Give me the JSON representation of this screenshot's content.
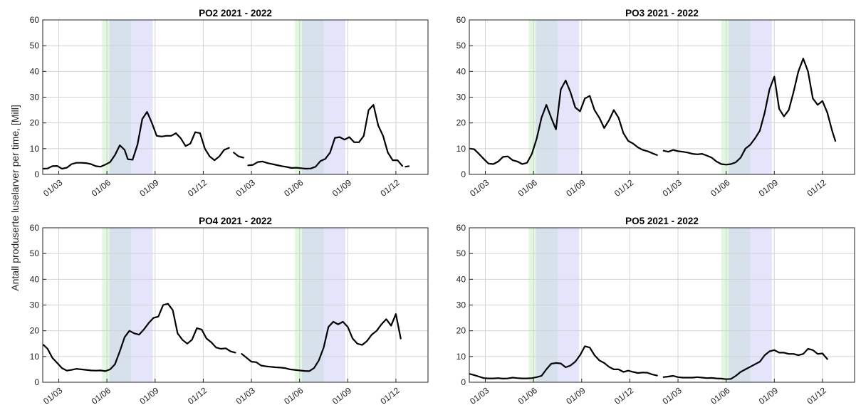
{
  "ylabel": "Antall produserte luselarver per time, [Mill]",
  "colors": {
    "green_band": "#e8f8e6",
    "overlap_band": "#cfe6e6",
    "blue_band": "#e4e4fb",
    "line": "#000000",
    "grid": "#d2d2d2"
  },
  "chart_data": [
    {
      "type": "line",
      "title": "PO2 2021 - 2022",
      "xticks": [
        "01/03",
        "01/06",
        "01/09",
        "01/12",
        "01/03",
        "01/06",
        "01/09",
        "01/12"
      ],
      "yticks": [
        "0",
        "10",
        "20",
        "30",
        "40",
        "50",
        "60"
      ],
      "ylim": [
        0,
        60
      ],
      "xlim": [
        0,
        24
      ],
      "grid": true,
      "shaded_periods": [
        {
          "kind": "green",
          "range": [
            3.7,
            5.5
          ]
        },
        {
          "kind": "blue",
          "range": [
            4.15,
            6.85
          ]
        },
        {
          "kind": "green",
          "range": [
            15.7,
            17.5
          ]
        },
        {
          "kind": "blue",
          "range": [
            16.15,
            18.85
          ]
        }
      ],
      "segments": [
        {
          "x": [
            0.05,
            0.3,
            0.6,
            0.9,
            1.2,
            1.5,
            1.8,
            2.1,
            2.4,
            2.7,
            3.0,
            3.3,
            3.6,
            3.9,
            4.2,
            4.5,
            4.8,
            5.1,
            5.3,
            5.6,
            5.9,
            6.2,
            6.5,
            6.8,
            7.1,
            7.4,
            7.7,
            8.0,
            8.3,
            8.6,
            8.9,
            9.2,
            9.5,
            9.8,
            10.1,
            10.4,
            10.7,
            11.0,
            11.3,
            11.6
          ],
          "y": [
            2.2,
            2.3,
            3.2,
            3.3,
            2.2,
            2.6,
            4.0,
            4.5,
            4.5,
            4.4,
            4.0,
            3.2,
            3.0,
            3.8,
            4.8,
            7.5,
            11.3,
            9.5,
            5.9,
            5.7,
            11.5,
            21.5,
            24.3,
            20.0,
            15.0,
            14.7,
            15.0,
            15.0,
            16.0,
            14.0,
            11.0,
            12.0,
            16.4,
            16.0,
            10.0,
            7.0,
            5.5,
            7.0,
            9.5,
            10.3
          ]
        },
        {
          "x": [
            11.9,
            12.2,
            12.5
          ],
          "y": [
            8.5,
            7.0,
            6.5
          ]
        },
        {
          "x": [
            12.8,
            13.1,
            13.4,
            13.7,
            14.0,
            14.3,
            14.6,
            14.9,
            15.2,
            15.5,
            15.8,
            16.1,
            16.4,
            16.7,
            17.0,
            17.3,
            17.6,
            17.9,
            18.2,
            18.5,
            18.8,
            19.1,
            19.4,
            19.7,
            20.0,
            20.3,
            20.6,
            20.9,
            21.2,
            21.5,
            21.8,
            22.1,
            22.4
          ],
          "y": [
            3.5,
            3.7,
            4.8,
            5.0,
            4.4,
            4.0,
            3.6,
            3.2,
            2.9,
            2.5,
            2.6,
            2.4,
            2.2,
            2.3,
            3.0,
            5.2,
            6.0,
            8.5,
            14.2,
            14.5,
            13.5,
            14.5,
            12.5,
            12.5,
            15.0,
            25.0,
            27.0,
            19.0,
            15.0,
            8.5,
            5.5,
            5.5,
            3.3
          ]
        },
        {
          "x": [
            22.6,
            22.8
          ],
          "y": [
            3.0,
            3.2
          ]
        }
      ]
    },
    {
      "type": "line",
      "title": "PO3 2021 - 2022",
      "xticks": [
        "01/03",
        "01/06",
        "01/09",
        "01/12",
        "01/03",
        "01/06",
        "01/09",
        "01/12"
      ],
      "yticks": [
        "0",
        "10",
        "20",
        "30",
        "40",
        "50",
        "60"
      ],
      "ylim": [
        0,
        60
      ],
      "xlim": [
        0,
        24
      ],
      "grid": true,
      "shaded_periods": [
        {
          "kind": "green",
          "range": [
            3.7,
            5.5
          ]
        },
        {
          "kind": "blue",
          "range": [
            4.15,
            6.85
          ]
        },
        {
          "kind": "green",
          "range": [
            15.7,
            17.5
          ]
        },
        {
          "kind": "blue",
          "range": [
            16.15,
            18.85
          ]
        }
      ],
      "segments": [
        {
          "x": [
            0.05,
            0.3,
            0.6,
            0.9,
            1.2,
            1.5,
            1.8,
            2.1,
            2.4,
            2.7,
            3.0,
            3.3,
            3.6,
            3.9,
            4.2,
            4.5,
            4.8,
            5.1,
            5.4,
            5.7,
            6.0,
            6.3,
            6.6,
            6.9,
            7.2,
            7.5,
            7.8,
            8.1,
            8.4,
            8.7,
            9.0,
            9.3,
            9.6,
            9.9,
            10.2,
            10.5,
            10.8,
            11.1,
            11.4,
            11.7
          ],
          "y": [
            10.0,
            9.8,
            8.0,
            6.0,
            4.2,
            4.0,
            5.0,
            6.8,
            7.0,
            5.5,
            5.0,
            4.0,
            4.5,
            8.0,
            14.0,
            22.0,
            27.0,
            22.0,
            17.5,
            33.0,
            36.5,
            32.0,
            26.0,
            24.5,
            29.5,
            30.5,
            25.0,
            22.0,
            18.0,
            21.0,
            25.0,
            22.0,
            16.0,
            13.0,
            12.0,
            10.5,
            9.5,
            9.0,
            8.2,
            7.5
          ]
        },
        {
          "x": [
            12.1,
            12.4,
            12.7,
            13.0,
            13.3,
            13.6,
            13.9,
            14.2,
            14.5,
            14.8,
            15.1,
            15.4,
            15.7,
            16.0,
            16.3,
            16.6,
            16.9,
            17.2,
            17.5,
            17.8,
            18.1,
            18.4,
            18.7,
            19.0,
            19.3,
            19.6,
            19.9,
            20.2,
            20.5,
            20.8,
            21.1,
            21.4,
            21.7,
            22.0,
            22.3,
            22.6,
            22.8
          ],
          "y": [
            9.2,
            8.8,
            9.5,
            9.0,
            8.8,
            8.5,
            8.0,
            7.8,
            8.0,
            7.3,
            6.5,
            5.0,
            4.0,
            3.8,
            4.0,
            4.7,
            6.5,
            10.0,
            11.5,
            14.0,
            17.0,
            24.0,
            33.0,
            38.0,
            25.5,
            22.5,
            25.0,
            32.0,
            40.0,
            45.0,
            40.0,
            29.5,
            27.0,
            28.5,
            24.0,
            17.0,
            13.0
          ]
        }
      ]
    },
    {
      "type": "line",
      "title": "PO4 2021 - 2022",
      "xticks": [
        "01/03",
        "01/06",
        "01/09",
        "01/12",
        "01/03",
        "01/06",
        "01/09",
        "01/12"
      ],
      "yticks": [
        "0",
        "10",
        "20",
        "30",
        "40",
        "50",
        "60"
      ],
      "ylim": [
        0,
        60
      ],
      "xlim": [
        0,
        24
      ],
      "grid": true,
      "shaded_periods": [
        {
          "kind": "green",
          "range": [
            3.7,
            5.5
          ]
        },
        {
          "kind": "blue",
          "range": [
            4.15,
            6.85
          ]
        },
        {
          "kind": "green",
          "range": [
            15.7,
            17.5
          ]
        },
        {
          "kind": "blue",
          "range": [
            16.15,
            18.85
          ]
        }
      ],
      "segments": [
        {
          "x": [
            0.05,
            0.3,
            0.6,
            0.9,
            1.2,
            1.5,
            1.8,
            2.1,
            2.4,
            2.7,
            3.0,
            3.3,
            3.6,
            3.9,
            4.2,
            4.5,
            4.8,
            5.1,
            5.4,
            5.7,
            6.0,
            6.3,
            6.6,
            6.9,
            7.2,
            7.5,
            7.8,
            8.1,
            8.4,
            8.7,
            9.0,
            9.3,
            9.6,
            9.9,
            10.2,
            10.5,
            10.8,
            11.1,
            11.4,
            11.7,
            12.0
          ],
          "y": [
            14.5,
            13.0,
            9.5,
            7.5,
            5.5,
            4.5,
            4.8,
            5.2,
            5.0,
            4.8,
            4.6,
            4.5,
            4.6,
            4.3,
            5.0,
            7.0,
            12.0,
            17.5,
            20.0,
            19.0,
            18.5,
            20.5,
            23.0,
            25.0,
            25.5,
            30.0,
            30.5,
            28.0,
            19.0,
            16.5,
            15.0,
            16.5,
            21.0,
            20.5,
            17.0,
            15.5,
            13.5,
            13.0,
            13.2,
            12.0,
            11.5
          ]
        },
        {
          "x": [
            12.4,
            12.7,
            13.0,
            13.3,
            13.6,
            13.9,
            14.2,
            14.5,
            14.8,
            15.1,
            15.4,
            15.7,
            16.0,
            16.3,
            16.6,
            16.9,
            17.2,
            17.5,
            17.8,
            18.1,
            18.4,
            18.7,
            19.0,
            19.3,
            19.6,
            19.9,
            20.2,
            20.5,
            20.8,
            21.1,
            21.4,
            21.7,
            22.0,
            22.3
          ],
          "y": [
            11.0,
            9.5,
            8.0,
            7.8,
            6.5,
            6.2,
            6.0,
            5.8,
            5.7,
            5.5,
            5.0,
            4.8,
            4.6,
            4.4,
            4.3,
            5.5,
            8.5,
            13.5,
            21.5,
            23.5,
            22.5,
            23.5,
            21.5,
            17.0,
            15.0,
            14.5,
            16.0,
            18.5,
            20.0,
            22.5,
            24.5,
            22.0,
            26.5,
            17.0
          ]
        }
      ]
    },
    {
      "type": "line",
      "title": "PO5 2021 - 2022",
      "xticks": [
        "01/03",
        "01/06",
        "01/09",
        "01/12",
        "01/03",
        "01/06",
        "01/09",
        "01/12"
      ],
      "yticks": [
        "0",
        "10",
        "20",
        "30",
        "40",
        "50",
        "60"
      ],
      "ylim": [
        0,
        60
      ],
      "xlim": [
        0,
        24
      ],
      "grid": true,
      "shaded_periods": [
        {
          "kind": "green",
          "range": [
            3.7,
            5.5
          ]
        },
        {
          "kind": "blue",
          "range": [
            4.15,
            6.85
          ]
        },
        {
          "kind": "green",
          "range": [
            15.7,
            17.5
          ]
        },
        {
          "kind": "blue",
          "range": [
            16.15,
            18.85
          ]
        }
      ],
      "segments": [
        {
          "x": [
            0.05,
            0.3,
            0.6,
            0.9,
            1.2,
            1.5,
            1.8,
            2.1,
            2.4,
            2.7,
            3.0,
            3.3,
            3.6,
            3.9,
            4.2,
            4.5,
            4.8,
            5.1,
            5.4,
            5.7,
            6.0,
            6.3,
            6.6,
            6.9,
            7.2,
            7.5,
            7.8,
            8.1,
            8.4,
            8.7,
            9.0,
            9.3,
            9.6,
            9.9,
            10.2,
            10.5,
            10.8,
            11.1,
            11.4,
            11.7
          ],
          "y": [
            3.2,
            2.8,
            2.2,
            1.6,
            1.5,
            1.5,
            1.6,
            1.4,
            1.5,
            1.8,
            1.6,
            1.5,
            1.5,
            1.6,
            2.0,
            2.5,
            5.0,
            7.2,
            7.5,
            7.3,
            5.8,
            6.5,
            8.0,
            10.5,
            14.0,
            13.5,
            10.5,
            8.5,
            7.5,
            6.0,
            5.0,
            5.0,
            4.0,
            4.5,
            4.0,
            3.6,
            3.8,
            3.7,
            3.0,
            2.6
          ]
        },
        {
          "x": [
            12.1,
            12.4,
            12.7,
            13.0,
            13.3,
            13.6,
            13.9,
            14.2,
            14.5,
            14.8,
            15.1,
            15.4,
            15.7,
            16.0,
            16.3,
            16.6,
            16.9,
            17.2,
            17.5,
            17.8,
            18.1,
            18.4,
            18.7,
            19.0,
            19.3,
            19.6,
            19.9,
            20.2,
            20.5,
            20.8,
            21.1,
            21.4,
            21.7,
            22.0,
            22.3
          ],
          "y": [
            2.0,
            2.2,
            2.5,
            2.0,
            1.8,
            1.8,
            1.8,
            2.0,
            1.8,
            1.6,
            1.7,
            1.5,
            1.4,
            1.2,
            1.3,
            2.5,
            4.0,
            5.0,
            6.0,
            7.0,
            8.0,
            10.5,
            12.0,
            12.5,
            11.5,
            11.5,
            11.0,
            11.0,
            10.5,
            11.0,
            13.0,
            12.5,
            11.0,
            11.2,
            9.0
          ]
        }
      ]
    }
  ]
}
